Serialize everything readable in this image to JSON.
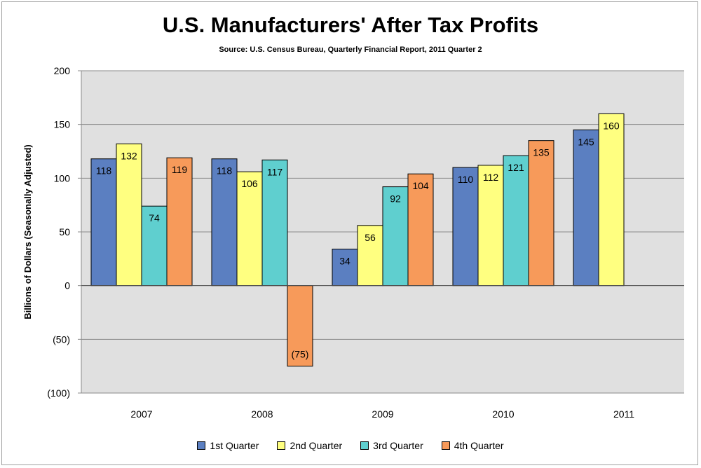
{
  "chart_data": {
    "type": "bar",
    "title": "U.S. Manufacturers' After Tax Profits",
    "subtitle": "Source: U.S. Census Bureau, Quarterly Financial Report, 2011 Quarter 2",
    "xlabel": "",
    "ylabel": "Billions of Dollars (Seasonally Adjusted)",
    "ylim": [
      -100,
      200
    ],
    "yticks": [
      200,
      150,
      100,
      50,
      0,
      -50,
      -100
    ],
    "ytick_labels": [
      "200",
      "150",
      "100",
      "50",
      "0",
      "(50)",
      "(100)"
    ],
    "grid": true,
    "legend_position": "bottom",
    "categories": [
      "2007",
      "2008",
      "2009",
      "2010",
      "2011"
    ],
    "series": [
      {
        "name": "1st Quarter",
        "color": "#5b7fc1",
        "values": [
          118,
          118,
          34,
          110,
          145
        ],
        "labels": [
          "118",
          "118",
          "34",
          "110",
          "145"
        ]
      },
      {
        "name": "2nd Quarter",
        "color": "#ffff80",
        "values": [
          132,
          106,
          56,
          112,
          160
        ],
        "labels": [
          "132",
          "106",
          "56",
          "112",
          "160"
        ]
      },
      {
        "name": "3rd Quarter",
        "color": "#5fcfcf",
        "values": [
          74,
          117,
          92,
          121,
          null
        ],
        "labels": [
          "74",
          "117",
          "92",
          "121",
          ""
        ]
      },
      {
        "name": "4th Quarter",
        "color": "#f79a5a",
        "values": [
          119,
          -75,
          104,
          135,
          null
        ],
        "labels": [
          "119",
          "(75)",
          "104",
          "135",
          ""
        ]
      }
    ]
  }
}
